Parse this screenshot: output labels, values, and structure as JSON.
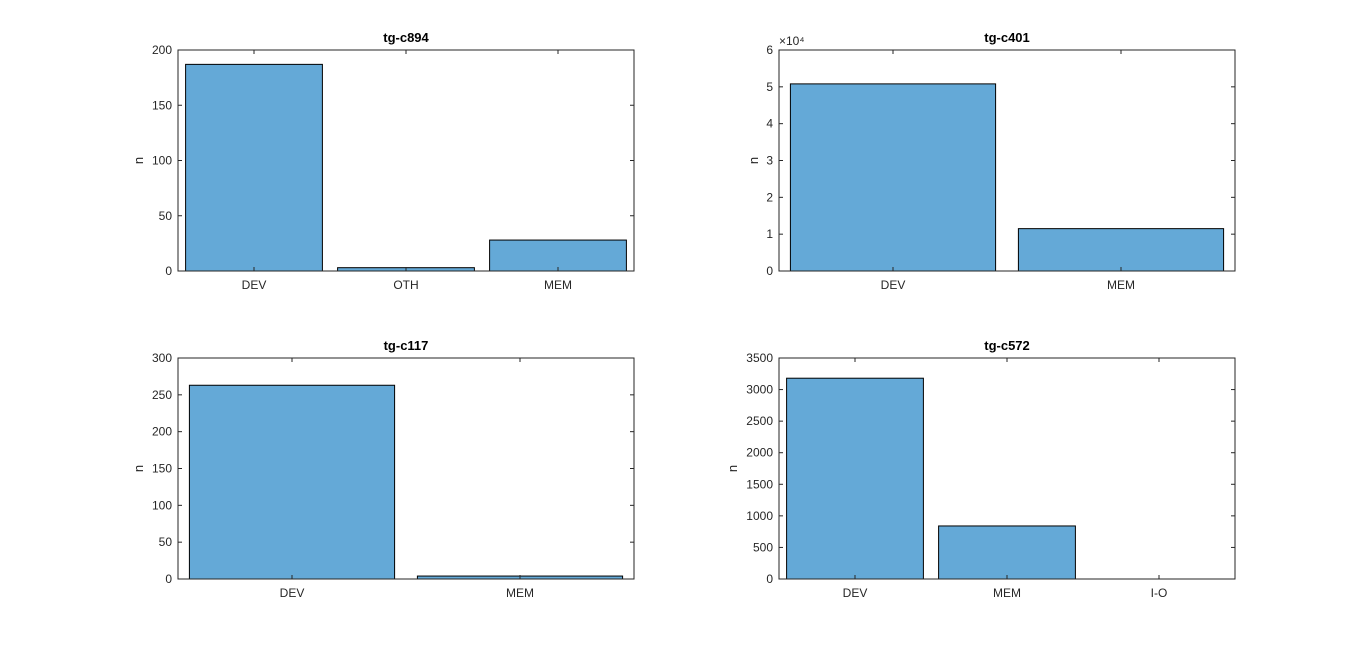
{
  "figure": {
    "background": "#ffffff",
    "bar_color": "#64a9d7",
    "edge_color": "#000000",
    "axis_color": "#262626"
  },
  "chart_data": [
    {
      "type": "bar",
      "title": "tg-c894",
      "ylabel": "n",
      "xlabel": "",
      "categories": [
        "DEV",
        "OTH",
        "MEM"
      ],
      "values": [
        187,
        3,
        28
      ],
      "ylim": [
        0,
        200
      ],
      "yticks": [
        0,
        50,
        100,
        150,
        200
      ],
      "ytick_labels": [
        "0",
        "50",
        "100",
        "150",
        "200"
      ],
      "exponent": "",
      "grid": false,
      "legend": "none"
    },
    {
      "type": "bar",
      "title": "tg-c401",
      "ylabel": "n",
      "xlabel": "",
      "categories": [
        "DEV",
        "MEM"
      ],
      "values": [
        50800,
        11500
      ],
      "ylim": [
        0,
        60000
      ],
      "yticks": [
        0,
        10000,
        20000,
        30000,
        40000,
        50000,
        60000
      ],
      "ytick_labels": [
        "0",
        "1",
        "2",
        "3",
        "4",
        "5",
        "6"
      ],
      "exponent": "×10⁴",
      "grid": false,
      "legend": "none"
    },
    {
      "type": "bar",
      "title": "tg-c117",
      "ylabel": "n",
      "xlabel": "",
      "categories": [
        "DEV",
        "MEM"
      ],
      "values": [
        263,
        4
      ],
      "ylim": [
        0,
        300
      ],
      "yticks": [
        0,
        50,
        100,
        150,
        200,
        250,
        300
      ],
      "ytick_labels": [
        "0",
        "50",
        "100",
        "150",
        "200",
        "250",
        "300"
      ],
      "exponent": "",
      "grid": false,
      "legend": "none"
    },
    {
      "type": "bar",
      "title": "tg-c572",
      "ylabel": "n",
      "xlabel": "",
      "categories": [
        "DEV",
        "MEM",
        "I-O"
      ],
      "values": [
        3180,
        840,
        0
      ],
      "ylim": [
        0,
        3500
      ],
      "yticks": [
        0,
        500,
        1000,
        1500,
        2000,
        2500,
        3000,
        3500
      ],
      "ytick_labels": [
        "0",
        "500",
        "1000",
        "1500",
        "2000",
        "2500",
        "3000",
        "3500"
      ],
      "exponent": "",
      "grid": false,
      "legend": "none"
    }
  ]
}
